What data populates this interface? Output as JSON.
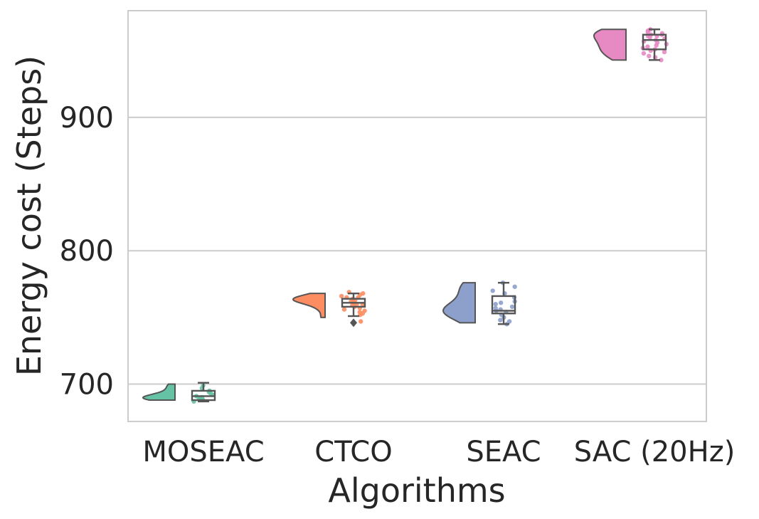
{
  "chart_data": {
    "type": "raincloud",
    "title": "",
    "xlabel": "Algorithms",
    "ylabel": "Energy cost (Steps)",
    "ylim": [
      672,
      980
    ],
    "yticks": [
      700,
      800,
      900
    ],
    "grid": "horizontal",
    "categories": [
      "MOSEAC",
      "CTCO",
      "SEAC",
      "SAC (20Hz)"
    ],
    "colors": [
      "#66c2a5",
      "#fc8d62",
      "#8da0cb",
      "#e78ac3"
    ],
    "box_stats": [
      {
        "whisker_low": 687,
        "q1": 688,
        "median": 691,
        "q3": 695,
        "whisker_high": 701,
        "outliers": []
      },
      {
        "whisker_low": 751,
        "q1": 758,
        "median": 761,
        "q3": 764,
        "whisker_high": 768,
        "outliers": [
          746
        ]
      },
      {
        "whisker_low": 745,
        "q1": 753,
        "median": 755,
        "q3": 766,
        "whisker_high": 776,
        "outliers": []
      },
      {
        "whisker_low": 943,
        "q1": 951,
        "median": 958,
        "q3": 962,
        "whisker_high": 966,
        "outliers": []
      }
    ],
    "points": [
      [
        687,
        688,
        689,
        690,
        691,
        692,
        693,
        695,
        697,
        699,
        688,
        690,
        694
      ],
      [
        747,
        752,
        754,
        756,
        758,
        759,
        760,
        761,
        762,
        763,
        764,
        765,
        766,
        767,
        768,
        769,
        757,
        760,
        762,
        755,
        753,
        765
      ],
      [
        745,
        747,
        750,
        752,
        754,
        755,
        756,
        758,
        760,
        762,
        765,
        768,
        770,
        773,
        776,
        748,
        757,
        761
      ],
      [
        943,
        945,
        948,
        950,
        952,
        954,
        955,
        956,
        958,
        959,
        960,
        961,
        962,
        963,
        964,
        965,
        966,
        949,
        953,
        957,
        961,
        946,
        962,
        951
      ]
    ],
    "density_samples": [
      [
        688,
        689,
        689,
        689,
        690,
        690,
        691,
        692,
        694,
        697,
        700
      ],
      [
        750,
        756,
        759,
        761,
        762,
        763,
        763,
        764,
        764,
        764,
        765,
        766,
        768
      ],
      [
        746,
        750,
        753,
        754,
        755,
        755,
        756,
        758,
        762,
        766,
        770,
        774,
        776
      ],
      [
        943,
        946,
        948,
        950,
        952,
        954,
        956,
        958,
        960,
        962,
        963,
        964,
        965,
        966
      ]
    ]
  }
}
